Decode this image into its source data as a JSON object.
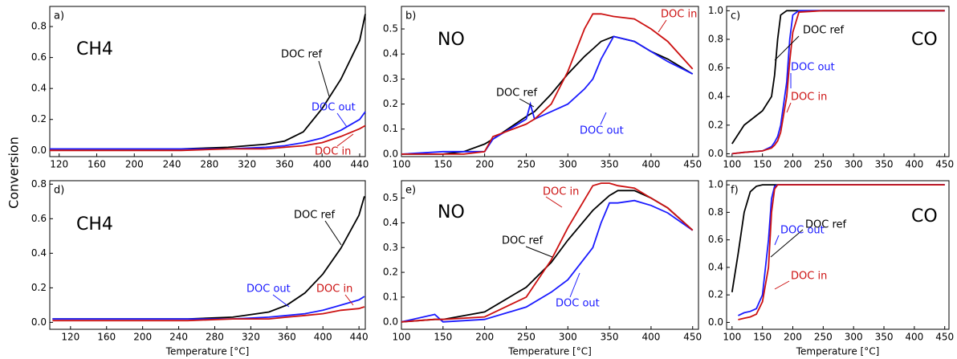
{
  "chart_data": [
    {
      "type": "line",
      "annotations": [
        "a)",
        "CH4"
      ],
      "ylabel": "Conversion",
      "x": [
        110,
        150,
        200,
        250,
        300,
        340,
        360,
        380,
        400,
        420,
        440,
        446
      ],
      "series": [
        {
          "name": "DOC ref",
          "color": "#000000",
          "values": [
            0.01,
            0.01,
            0.01,
            0.01,
            0.02,
            0.04,
            0.06,
            0.12,
            0.27,
            0.46,
            0.71,
            0.88
          ]
        },
        {
          "name": "DOC out",
          "color": "#1a1aff",
          "values": [
            0.01,
            0.01,
            0.01,
            0.01,
            0.01,
            0.02,
            0.03,
            0.05,
            0.08,
            0.13,
            0.2,
            0.25
          ]
        },
        {
          "name": "DOC in",
          "color": "#cc1111",
          "values": [
            0.0,
            0.0,
            0.0,
            0.0,
            0.01,
            0.01,
            0.02,
            0.03,
            0.05,
            0.09,
            0.14,
            0.16
          ]
        }
      ],
      "xlim": [
        110,
        446
      ],
      "xticks": [
        120,
        160,
        200,
        240,
        280,
        320,
        360,
        400,
        440
      ],
      "ylim": [
        -0.04,
        0.93
      ],
      "yticks": [
        {
          "value": 0,
          "label": "0.0"
        },
        0.2,
        0.4,
        0.6,
        0.8
      ]
    },
    {
      "type": "line",
      "annotations": [
        "b)",
        "NO"
      ],
      "x": [
        100,
        150,
        175,
        200,
        210,
        250,
        255,
        260,
        280,
        300,
        320,
        330,
        340,
        355,
        380,
        400,
        420,
        450
      ],
      "series": [
        {
          "name": "DOC ref",
          "color": "#000000",
          "values": [
            0,
            0,
            0.01,
            0.04,
            0.06,
            0.15,
            0.16,
            0.17,
            0.24,
            0.32,
            0.39,
            0.42,
            0.45,
            0.47,
            0.45,
            0.41,
            0.38,
            0.32
          ]
        },
        {
          "name": "DOC out",
          "color": "#1a1aff",
          "values": [
            0,
            0.01,
            0.01,
            0.01,
            0.06,
            0.14,
            0.2,
            0.14,
            0.17,
            0.2,
            0.26,
            0.3,
            0.38,
            0.47,
            0.45,
            0.41,
            0.37,
            0.32
          ]
        },
        {
          "name": "DOC in",
          "color": "#cc1111",
          "values": [
            0,
            0,
            0,
            0.01,
            0.07,
            0.12,
            0.13,
            0.14,
            0.2,
            0.33,
            0.5,
            0.56,
            0.56,
            0.55,
            0.54,
            0.5,
            0.45,
            0.34
          ]
        }
      ],
      "xlim": [
        100,
        457
      ],
      "xticks": [
        100,
        150,
        200,
        250,
        300,
        350,
        400,
        450
      ],
      "ylim": [
        -0.01,
        0.59
      ],
      "yticks": [
        {
          "value": 0,
          "label": "0.0"
        },
        0.1,
        0.2,
        0.3,
        0.4,
        0.5
      ]
    },
    {
      "type": "line",
      "annotations": [
        "c)",
        "CO"
      ],
      "x": [
        100,
        120,
        150,
        165,
        170,
        175,
        180,
        190,
        195,
        200,
        210,
        250,
        450
      ],
      "series": [
        {
          "name": "DOC ref",
          "color": "#000000",
          "values": [
            0.07,
            0.2,
            0.3,
            0.4,
            0.55,
            0.8,
            0.97,
            1,
            1,
            1,
            1,
            1,
            1
          ]
        },
        {
          "name": "DOC out",
          "color": "#1a1aff",
          "values": [
            0,
            0.01,
            0.02,
            0.05,
            0.08,
            0.12,
            0.2,
            0.5,
            0.8,
            0.97,
            1,
            1,
            1
          ]
        },
        {
          "name": "DOC in",
          "color": "#cc1111",
          "values": [
            0,
            0.01,
            0.02,
            0.04,
            0.06,
            0.09,
            0.15,
            0.4,
            0.65,
            0.85,
            0.99,
            1,
            1
          ]
        }
      ],
      "xlim": [
        91,
        457
      ],
      "xticks": [
        100,
        150,
        200,
        250,
        300,
        350,
        400,
        450
      ],
      "ylim": [
        -0.02,
        1.03
      ],
      "yticks": [
        {
          "value": 0,
          "label": "0.0"
        },
        0.2,
        0.4,
        0.6,
        0.8,
        {
          "value": 1,
          "label": "1.0"
        }
      ]
    },
    {
      "type": "line",
      "annotations": [
        "d)",
        "CH4"
      ],
      "xlabel": "Temperature [°C]",
      "x": [
        100,
        150,
        200,
        250,
        300,
        340,
        360,
        380,
        400,
        420,
        440,
        446
      ],
      "series": [
        {
          "name": "DOC ref",
          "color": "#000000",
          "values": [
            0.02,
            0.02,
            0.02,
            0.02,
            0.03,
            0.06,
            0.1,
            0.17,
            0.28,
            0.43,
            0.62,
            0.73
          ]
        },
        {
          "name": "DOC out",
          "color": "#1a1aff",
          "values": [
            0.02,
            0.02,
            0.02,
            0.02,
            0.02,
            0.03,
            0.04,
            0.05,
            0.07,
            0.1,
            0.13,
            0.15
          ]
        },
        {
          "name": "DOC in",
          "color": "#cc1111",
          "values": [
            0.01,
            0.01,
            0.01,
            0.01,
            0.02,
            0.02,
            0.03,
            0.04,
            0.05,
            0.07,
            0.08,
            0.09
          ]
        }
      ],
      "xlim": [
        97,
        447
      ],
      "xticks": [
        120,
        160,
        200,
        240,
        280,
        320,
        360,
        400,
        440
      ],
      "ylim": [
        -0.04,
        0.82
      ],
      "yticks": [
        {
          "value": 0,
          "label": "0.0"
        },
        0.2,
        0.4,
        0.6,
        0.8
      ]
    },
    {
      "type": "line",
      "annotations": [
        "e)",
        "NO"
      ],
      "xlabel": "Temperature [°C]",
      "x": [
        100,
        140,
        150,
        200,
        250,
        280,
        300,
        330,
        340,
        350,
        360,
        380,
        400,
        420,
        450
      ],
      "series": [
        {
          "name": "DOC ref",
          "color": "#000000",
          "values": [
            0,
            0.01,
            0.01,
            0.04,
            0.14,
            0.24,
            0.33,
            0.45,
            0.48,
            0.51,
            0.53,
            0.53,
            0.5,
            0.46,
            0.37
          ]
        },
        {
          "name": "DOC out",
          "color": "#1a1aff",
          "values": [
            0,
            0.03,
            0,
            0.01,
            0.06,
            0.12,
            0.17,
            0.3,
            0.4,
            0.48,
            0.48,
            0.49,
            0.47,
            0.44,
            0.37
          ]
        },
        {
          "name": "DOC in",
          "color": "#cc1111",
          "values": [
            0,
            0.01,
            0.01,
            0.02,
            0.1,
            0.25,
            0.38,
            0.55,
            0.56,
            0.56,
            0.55,
            0.54,
            0.5,
            0.46,
            0.37
          ]
        }
      ],
      "xlim": [
        100,
        457
      ],
      "xticks": [
        100,
        150,
        200,
        250,
        300,
        350,
        400,
        450
      ],
      "ylim": [
        -0.03,
        0.57
      ],
      "yticks": [
        {
          "value": 0,
          "label": "0.0"
        },
        0.1,
        0.2,
        0.3,
        0.4,
        0.5
      ]
    },
    {
      "type": "line",
      "annotations": [
        "f)",
        "CO"
      ],
      "xlabel": "Temperature [°C]",
      "x": [
        100,
        110,
        120,
        130,
        140,
        150,
        160,
        165,
        170,
        175,
        200,
        450
      ],
      "series": [
        {
          "name": "DOC ref",
          "color": "#000000",
          "values": [
            0.22,
            0.5,
            0.8,
            0.95,
            0.99,
            1,
            1,
            1,
            1,
            1,
            1,
            1
          ]
        },
        {
          "name": "DOC out",
          "color": "#1a1aff",
          "values": [
            null,
            0.05,
            0.07,
            0.08,
            0.1,
            0.2,
            0.6,
            0.9,
            0.99,
            1,
            1,
            1
          ]
        },
        {
          "name": "DOC in",
          "color": "#cc1111",
          "values": [
            null,
            0.02,
            0.03,
            0.04,
            0.06,
            0.15,
            0.4,
            0.8,
            0.97,
            1,
            1,
            1
          ]
        }
      ],
      "xlim": [
        91,
        457
      ],
      "xticks": [
        100,
        150,
        200,
        250,
        300,
        350,
        400,
        450
      ],
      "ylim": [
        -0.05,
        1.03
      ],
      "yticks": [
        {
          "value": 0,
          "label": "0.0"
        },
        0.2,
        0.4,
        0.6,
        0.8,
        {
          "value": 1,
          "label": "1.0"
        }
      ]
    }
  ]
}
